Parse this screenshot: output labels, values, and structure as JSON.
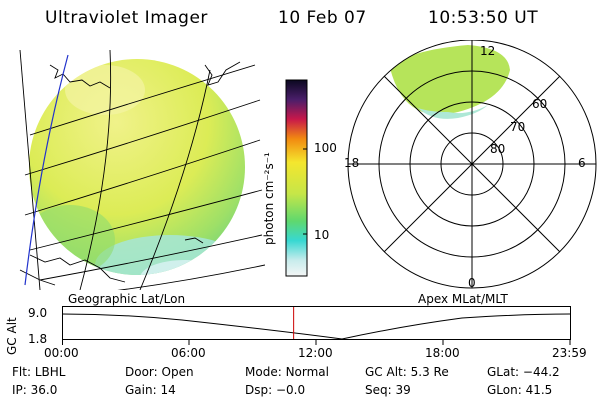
{
  "header": {
    "instrument": "Ultraviolet Imager",
    "date": "10 Feb 07",
    "time": "10:53:50 UT"
  },
  "colorbar": {
    "unit_label": "photon cm⁻²s⁻¹",
    "ticks": [
      "100",
      "10"
    ]
  },
  "polar": {
    "lat_labels": [
      "60",
      "70",
      "80"
    ],
    "mlt_labels": [
      "12",
      "18",
      "6",
      "0"
    ]
  },
  "panel_labels": {
    "left": "Geographic Lat/Lon",
    "right": "Apex MLat/MLT"
  },
  "timeline": {
    "ylabel": "GC Alt",
    "y_ticks": [
      "9.0",
      "1.8"
    ],
    "x_ticks": [
      "00:00",
      "06:00",
      "12:00",
      "18:00",
      "23:59"
    ],
    "current_time_fraction": 0.455
  },
  "status": [
    [
      {
        "key": "Flt:",
        "value": "LBHL"
      },
      {
        "key": "Door:",
        "value": "Open"
      },
      {
        "key": "Mode:",
        "value": "Normal"
      },
      {
        "key": "GC Alt:",
        "value": "5.3 Re"
      },
      {
        "key": "GLat:",
        "value": "−44.2"
      }
    ],
    [
      {
        "key": "IP:",
        "value": "36.0"
      },
      {
        "key": "Gain:",
        "value": "14"
      },
      {
        "key": "Dsp:",
        "value": "−0.0"
      },
      {
        "key": "Seq:",
        "value": "39"
      },
      {
        "key": "GLon:",
        "value": "41.5"
      }
    ]
  ],
  "colors": {
    "disk_main": "#e4ef5a",
    "disk_edge": "#7ed86a",
    "disk_bottom": "#8fe0e4",
    "time_marker": "#cc0000"
  }
}
